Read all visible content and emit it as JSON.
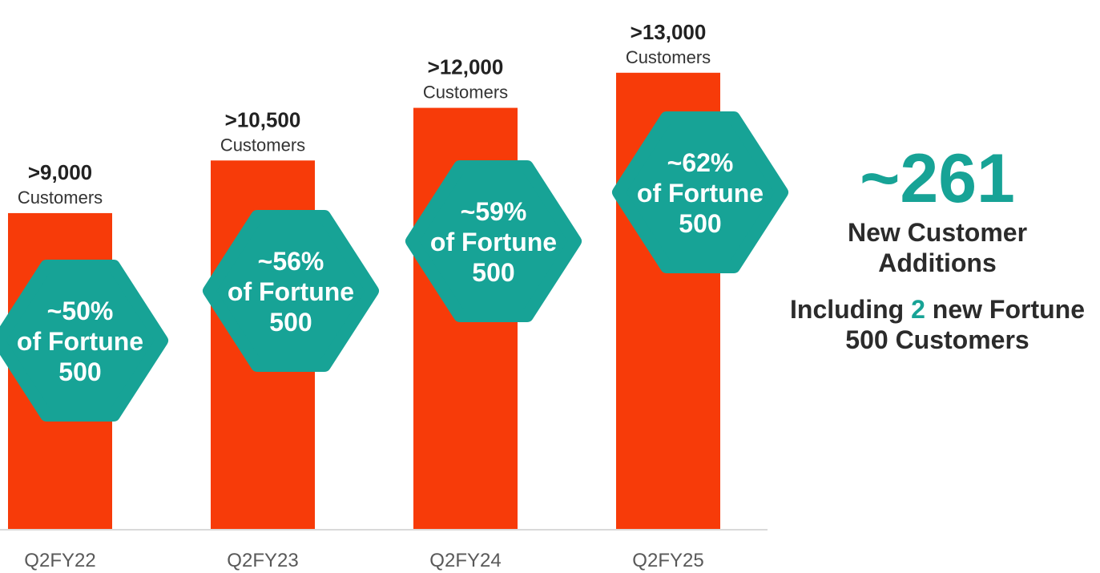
{
  "colors": {
    "bar": "#F73B09",
    "accent": "#17A396",
    "axis": "#D9D9D9",
    "text": "#2B2B2B"
  },
  "chart_data": {
    "type": "bar",
    "categories": [
      "Q2FY22",
      "Q2FY23",
      "Q2FY24",
      "Q2FY25"
    ],
    "values": [
      9000,
      10500,
      12000,
      13000
    ],
    "value_labels": [
      ">9,000",
      ">10,500",
      ">12,000",
      ">13,000"
    ],
    "value_unit": "Customers",
    "fortune500_share_pct": [
      50,
      56,
      59,
      62
    ],
    "badges": [
      {
        "line1": "~50%",
        "line2": "of Fortune",
        "line3": "500"
      },
      {
        "line1": "~56%",
        "line2": "of Fortune",
        "line3": "500"
      },
      {
        "line1": "~59%",
        "line2": "of Fortune",
        "line3": "500"
      },
      {
        "line1": "~62%",
        "line2": "of Fortune",
        "line3": "500"
      }
    ],
    "ylim": [
      0,
      14000
    ],
    "grid": false,
    "legend": false
  },
  "callout": {
    "number": "~261",
    "caption": "New Customer Additions",
    "f500_prefix": "Including ",
    "f500_count": "2",
    "f500_suffix_1": " new Fortune",
    "f500_suffix_2": "500 Customers"
  }
}
